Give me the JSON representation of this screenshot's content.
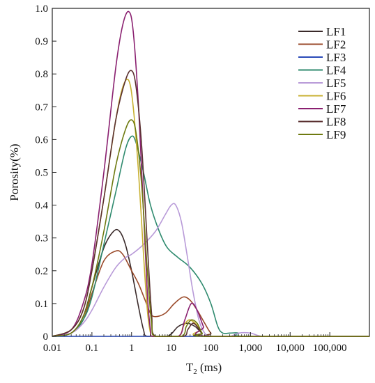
{
  "chart_data": {
    "type": "line",
    "title": "",
    "xlabel": "T",
    "xlabel_sub": "2",
    "xlabel_unit": " (ms)",
    "ylabel": "Porosity(%)",
    "xscale": "log",
    "xlim": [
      0.01,
      1000000
    ],
    "ylim": [
      0,
      1.0
    ],
    "x_ticks": [
      0.01,
      0.1,
      1,
      10,
      100,
      1000,
      10000,
      100000
    ],
    "x_tick_labels": [
      "0.01",
      "0.1",
      "1",
      "10",
      "100",
      "1,000",
      "10,000",
      "100,000"
    ],
    "y_ticks": [
      0,
      0.1,
      0.2,
      0.3,
      0.4,
      0.5,
      0.6,
      0.7,
      0.8,
      0.9,
      1.0
    ],
    "y_tick_labels": [
      "0",
      "0.1",
      "0.2",
      "0.3",
      "0.4",
      "0.5",
      "0.6",
      "0.7",
      "0.8",
      "0.9",
      "1.0"
    ],
    "grid": false,
    "legend_position": "top-right",
    "series": [
      {
        "name": "LF1",
        "color": "#3a2a2a",
        "points": [
          [
            0.01,
            0
          ],
          [
            0.03,
            0.01
          ],
          [
            0.06,
            0.06
          ],
          [
            0.1,
            0.15
          ],
          [
            0.2,
            0.27
          ],
          [
            0.35,
            0.32
          ],
          [
            0.5,
            0.32
          ],
          [
            0.7,
            0.28
          ],
          [
            1,
            0.2
          ],
          [
            1.5,
            0.09
          ],
          [
            2,
            0.02
          ],
          [
            2.5,
            0
          ],
          [
            8,
            0
          ],
          [
            15,
            0.03
          ],
          [
            25,
            0.04
          ],
          [
            40,
            0.03
          ],
          [
            60,
            0.01
          ],
          [
            100,
            0
          ],
          [
            1000000,
            0
          ]
        ]
      },
      {
        "name": "LF2",
        "color": "#9a4a2a",
        "points": [
          [
            0.01,
            0
          ],
          [
            0.03,
            0.01
          ],
          [
            0.06,
            0.05
          ],
          [
            0.1,
            0.13
          ],
          [
            0.2,
            0.23
          ],
          [
            0.4,
            0.26
          ],
          [
            0.6,
            0.25
          ],
          [
            1,
            0.2
          ],
          [
            1.5,
            0.16
          ],
          [
            2.2,
            0.11
          ],
          [
            3,
            0.07
          ],
          [
            4,
            0.06
          ],
          [
            7,
            0.07
          ],
          [
            12,
            0.1
          ],
          [
            20,
            0.12
          ],
          [
            30,
            0.11
          ],
          [
            45,
            0.08
          ],
          [
            70,
            0.04
          ],
          [
            100,
            0.01
          ],
          [
            150,
            0
          ],
          [
            1000000,
            0
          ]
        ]
      },
      {
        "name": "LF3",
        "color": "#2a4ab8",
        "points": [
          [
            0.01,
            0
          ],
          [
            1000000,
            0
          ]
        ]
      },
      {
        "name": "LF4",
        "color": "#2e8a6e",
        "points": [
          [
            0.01,
            0
          ],
          [
            0.03,
            0.01
          ],
          [
            0.06,
            0.05
          ],
          [
            0.1,
            0.12
          ],
          [
            0.2,
            0.28
          ],
          [
            0.4,
            0.44
          ],
          [
            0.7,
            0.57
          ],
          [
            1,
            0.61
          ],
          [
            1.3,
            0.59
          ],
          [
            2,
            0.5
          ],
          [
            3,
            0.4
          ],
          [
            5,
            0.32
          ],
          [
            8,
            0.27
          ],
          [
            15,
            0.24
          ],
          [
            30,
            0.21
          ],
          [
            60,
            0.16
          ],
          [
            100,
            0.1
          ],
          [
            150,
            0.03
          ],
          [
            200,
            0.01
          ],
          [
            300,
            0.01
          ],
          [
            500,
            0.01
          ],
          [
            800,
            0
          ],
          [
            1000000,
            0
          ]
        ]
      },
      {
        "name": "LF5",
        "color": "#b89ad8",
        "points": [
          [
            0.01,
            0
          ],
          [
            0.03,
            0.01
          ],
          [
            0.06,
            0.04
          ],
          [
            0.1,
            0.08
          ],
          [
            0.2,
            0.15
          ],
          [
            0.4,
            0.21
          ],
          [
            0.7,
            0.24
          ],
          [
            1,
            0.25
          ],
          [
            2,
            0.28
          ],
          [
            4,
            0.32
          ],
          [
            7,
            0.37
          ],
          [
            10,
            0.4
          ],
          [
            13,
            0.4
          ],
          [
            18,
            0.35
          ],
          [
            25,
            0.25
          ],
          [
            35,
            0.14
          ],
          [
            50,
            0.05
          ],
          [
            70,
            0.01
          ],
          [
            100,
            0
          ],
          [
            300,
            0
          ],
          [
            500,
            0.01
          ],
          [
            1000,
            0.01
          ],
          [
            2000,
            0
          ],
          [
            10000,
            0
          ],
          [
            1000000,
            0
          ]
        ]
      },
      {
        "name": "LF6",
        "color": "#c8b030",
        "points": [
          [
            0.01,
            0
          ],
          [
            0.03,
            0.02
          ],
          [
            0.06,
            0.08
          ],
          [
            0.1,
            0.2
          ],
          [
            0.2,
            0.42
          ],
          [
            0.4,
            0.66
          ],
          [
            0.6,
            0.76
          ],
          [
            0.85,
            0.78
          ],
          [
            1.1,
            0.7
          ],
          [
            1.5,
            0.5
          ],
          [
            2,
            0.25
          ],
          [
            2.5,
            0.08
          ],
          [
            3,
            0.01
          ],
          [
            3.5,
            0
          ],
          [
            15,
            0
          ],
          [
            20,
            0.03
          ],
          [
            28,
            0.05
          ],
          [
            40,
            0.04
          ],
          [
            55,
            0.02
          ],
          [
            80,
            0
          ],
          [
            1000000,
            0
          ]
        ]
      },
      {
        "name": "LF7",
        "color": "#8a2070",
        "points": [
          [
            0.01,
            0
          ],
          [
            0.03,
            0.02
          ],
          [
            0.06,
            0.1
          ],
          [
            0.1,
            0.22
          ],
          [
            0.2,
            0.5
          ],
          [
            0.4,
            0.82
          ],
          [
            0.6,
            0.95
          ],
          [
            0.85,
            0.99
          ],
          [
            1.1,
            0.93
          ],
          [
            1.5,
            0.7
          ],
          [
            2,
            0.38
          ],
          [
            2.5,
            0.13
          ],
          [
            3,
            0.02
          ],
          [
            3.5,
            0
          ],
          [
            15,
            0
          ],
          [
            22,
            0.05
          ],
          [
            32,
            0.1
          ],
          [
            45,
            0.08
          ],
          [
            65,
            0.03
          ],
          [
            90,
            0
          ],
          [
            1000000,
            0
          ]
        ]
      },
      {
        "name": "LF8",
        "color": "#5a3030",
        "points": [
          [
            0.01,
            0
          ],
          [
            0.03,
            0.02
          ],
          [
            0.06,
            0.08
          ],
          [
            0.1,
            0.2
          ],
          [
            0.2,
            0.42
          ],
          [
            0.4,
            0.66
          ],
          [
            0.7,
            0.78
          ],
          [
            1,
            0.81
          ],
          [
            1.3,
            0.76
          ],
          [
            1.8,
            0.58
          ],
          [
            2.5,
            0.28
          ],
          [
            3.2,
            0.07
          ],
          [
            4,
            0
          ],
          [
            20,
            0
          ],
          [
            26,
            0.02
          ],
          [
            35,
            0.04
          ],
          [
            45,
            0.03
          ],
          [
            60,
            0.01
          ],
          [
            80,
            0
          ],
          [
            1000000,
            0
          ]
        ]
      },
      {
        "name": "LF9",
        "color": "#6e7a10",
        "points": [
          [
            0.01,
            0
          ],
          [
            0.03,
            0.01
          ],
          [
            0.06,
            0.06
          ],
          [
            0.1,
            0.15
          ],
          [
            0.2,
            0.32
          ],
          [
            0.4,
            0.52
          ],
          [
            0.7,
            0.63
          ],
          [
            1,
            0.66
          ],
          [
            1.3,
            0.62
          ],
          [
            1.8,
            0.46
          ],
          [
            2.5,
            0.2
          ],
          [
            3.2,
            0.04
          ],
          [
            4,
            0
          ],
          [
            18,
            0
          ],
          [
            24,
            0.03
          ],
          [
            32,
            0.05
          ],
          [
            45,
            0.04
          ],
          [
            60,
            0.01
          ],
          [
            80,
            0
          ],
          [
            1000000,
            0
          ]
        ]
      }
    ]
  }
}
